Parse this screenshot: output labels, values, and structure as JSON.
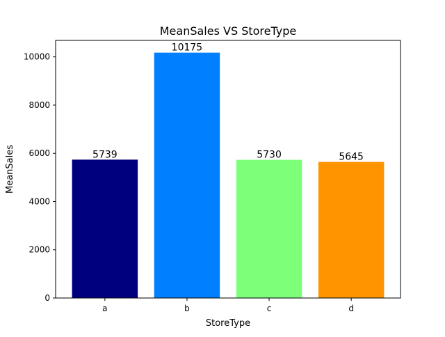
{
  "chart_data": {
    "type": "bar",
    "title": "MeanSales VS StoreType",
    "xlabel": "StoreType",
    "ylabel": "MeanSales",
    "categories": [
      "a",
      "b",
      "c",
      "d"
    ],
    "values": [
      5739,
      10175,
      5730,
      5645
    ],
    "data_labels": [
      "5739",
      "10175",
      "5730",
      "5645"
    ],
    "bar_colors": [
      "#00007f",
      "#0080ff",
      "#7dff7a",
      "#ff9400"
    ],
    "ylim": [
      0,
      10684
    ],
    "yticks": [
      0,
      2000,
      4000,
      6000,
      8000,
      10000
    ],
    "ytick_labels": [
      "0",
      "2000",
      "4000",
      "6000",
      "8000",
      "10000"
    ],
    "grid": false,
    "legend": "none"
  }
}
